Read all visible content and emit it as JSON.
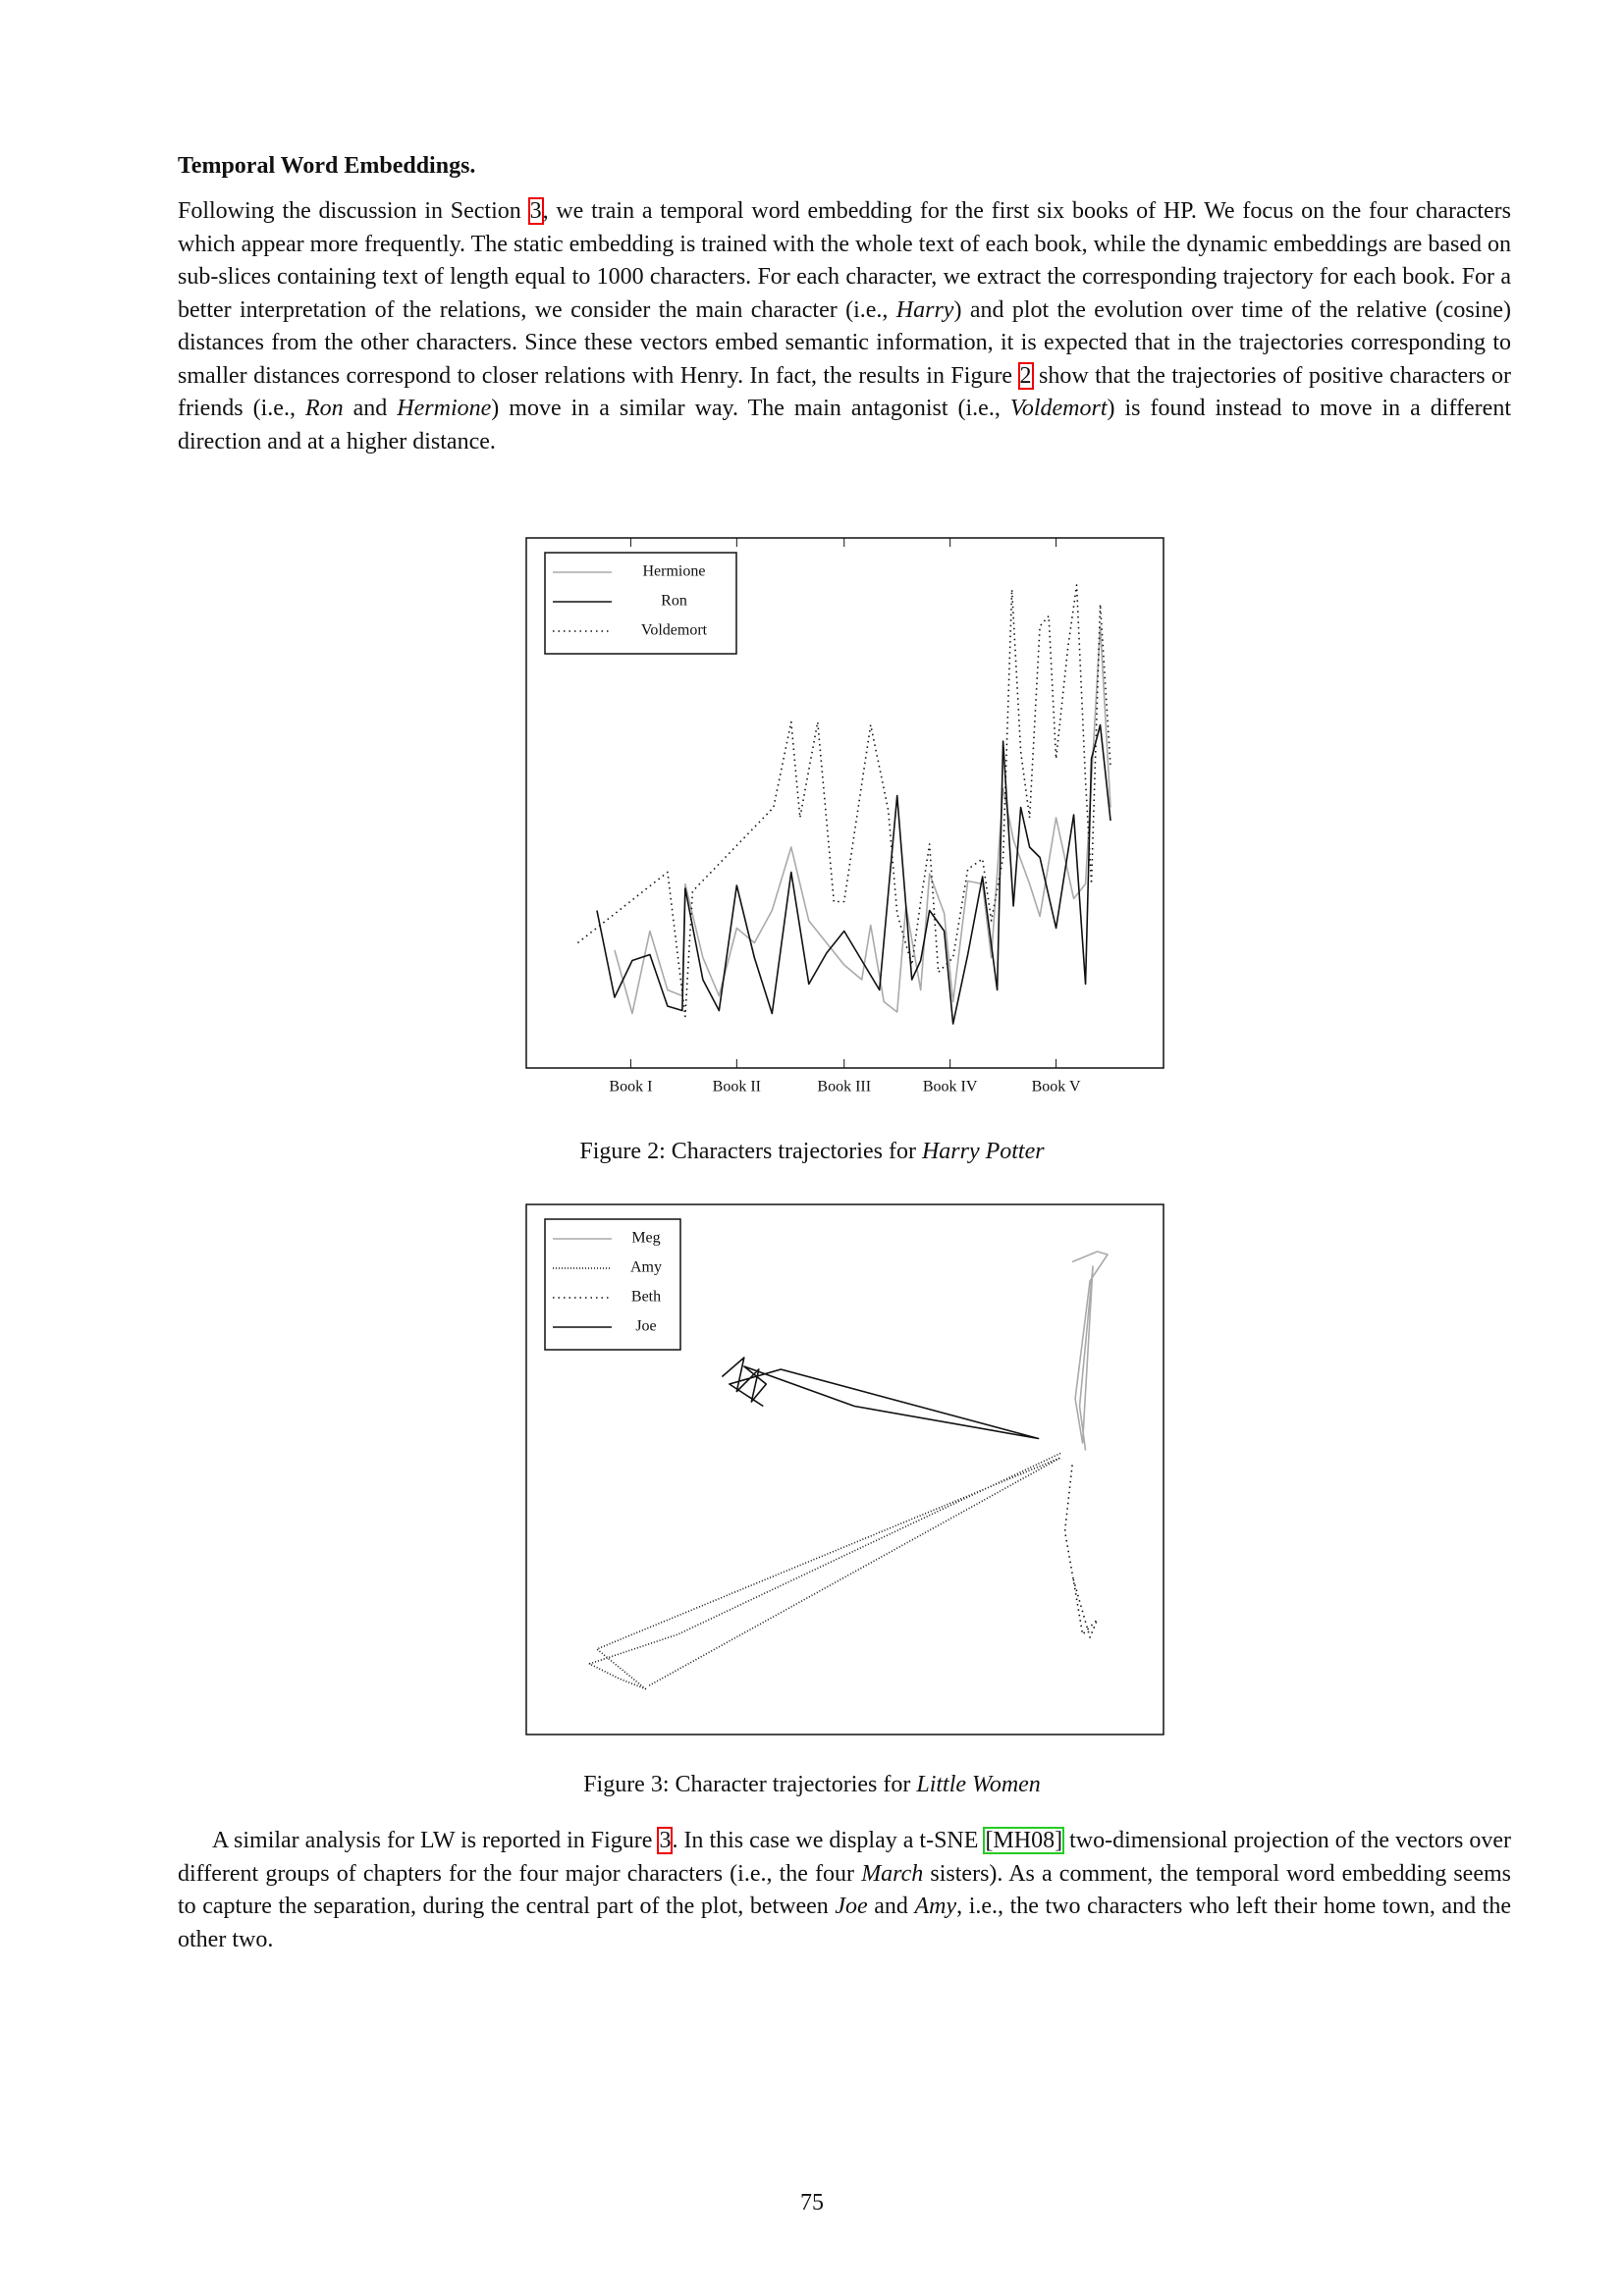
{
  "heading": "Temporal Word Embeddings.",
  "paragraphs": [
    [
      "Following the discussion in Section ",
      "3",
      ", we train a temporal word embedding for the first six books of HP. We focus on the four characters which appear more frequently. The static embedding is trained with the whole text of each book, while the dynamic embeddings are based on sub-slices containing text of length equal to 1000 characters. For each character, we extract the corresponding trajectory for each book. For a better interpretation of the relations, we consider the main character (i.e., ",
      "Harry",
      ") and plot the evolution over time of the relative (cosine) distances from the other characters. Since these vectors embed semantic information, it is expected that in the trajectories corresponding to smaller distances correspond to closer relations with Henry. In fact, the results in Figure ",
      "2",
      " show that the trajectories of positive characters or friends (i.e., ",
      "Ron",
      " and ",
      "Hermione",
      ") move in a similar way. The main antagonist (i.e., ",
      "Voldemort",
      ") is found instead to move in a different direction and at a higher distance."
    ],
    [
      "A similar analysis for LW is reported in Figure ",
      "3",
      ". In this case we display a t-SNE ",
      "[MH08]",
      " two-dimensional projection of the vectors over different groups of chapters for the four major characters (i.e., the four ",
      "March",
      " sisters). As a comment, the temporal word embedding seems to capture the separation, during the central part of the plot, between ",
      "Joe",
      " and ",
      "Amy",
      ", i.e., the two characters who left their home town, and the other two."
    ]
  ],
  "captions": [
    [
      "Figure 2: Characters trajectories for ",
      "Harry Potter"
    ],
    [
      "Figure 3: Character trajectories for ",
      "Little Women"
    ]
  ],
  "page_number": "75",
  "chart_data": [
    {
      "type": "line",
      "legend": "upper left",
      "xlim": [
        0,
        433
      ],
      "ylim": [
        0,
        360
      ],
      "xticks": [
        {
          "value": 71,
          "label": "Book I"
        },
        {
          "value": 143,
          "label": "Book II"
        },
        {
          "value": 216,
          "label": "Book III"
        },
        {
          "value": 288,
          "label": "Book IV"
        },
        {
          "value": 360,
          "label": "Book V"
        }
      ],
      "series": [
        {
          "name": "Hermione",
          "color": "#aaaaaa",
          "dash": "solid",
          "x": [
            60,
            72,
            84,
            96,
            106,
            108,
            120,
            131,
            143,
            155,
            167,
            180,
            192,
            204,
            216,
            228,
            234,
            243,
            252,
            258,
            268,
            274,
            284,
            290,
            300,
            310,
            316,
            324,
            331,
            342,
            349,
            360,
            372,
            380,
            390,
            397
          ],
          "values": [
            80,
            37,
            93,
            53,
            49,
            125,
            75,
            49,
            95,
            85,
            107,
            150,
            100,
            85,
            70,
            60,
            97,
            45,
            38,
            110,
            53,
            132,
            105,
            45,
            127,
            125,
            75,
            190,
            155,
            125,
            103,
            170,
            115,
            125,
            300,
            177
          ]
        },
        {
          "name": "Ron",
          "color": "#111111",
          "dash": "solid",
          "x": [
            48,
            60,
            72,
            84,
            96,
            106,
            108,
            120,
            131,
            143,
            155,
            167,
            180,
            192,
            204,
            216,
            228,
            240,
            252,
            262,
            268,
            274,
            284,
            290,
            300,
            310,
            320,
            324,
            331,
            336,
            342,
            349,
            360,
            372,
            380,
            384,
            390,
            397
          ],
          "values": [
            107,
            48,
            73,
            77,
            42,
            39,
            122,
            60,
            39,
            124,
            75,
            37,
            133,
            57,
            78,
            93,
            73,
            53,
            185,
            60,
            73,
            107,
            93,
            30,
            77,
            130,
            53,
            222,
            110,
            177,
            150,
            143,
            95,
            172,
            57,
            210,
            233,
            168
          ]
        },
        {
          "name": "Voldemort",
          "color": "#111111",
          "dash": "dotted",
          "x": [
            35,
            96,
            108,
            113,
            168,
            180,
            186,
            198,
            209,
            216,
            234,
            246,
            252,
            262,
            268,
            274,
            280,
            290,
            300,
            310,
            316,
            324,
            330,
            336,
            342,
            349,
            355,
            360,
            368,
            374,
            380,
            384,
            390,
            397
          ],
          "values": [
            85,
            133,
            35,
            120,
            177,
            235,
            170,
            235,
            113,
            113,
            233,
            175,
            105,
            70,
            113,
            152,
            65,
            75,
            135,
            142,
            100,
            143,
            325,
            215,
            170,
            300,
            307,
            210,
            285,
            328,
            195,
            125,
            315,
            205
          ]
        }
      ]
    },
    {
      "type": "line",
      "legend": "upper left",
      "xlim": [
        0,
        433
      ],
      "ylim": [
        0,
        360
      ],
      "series": [
        {
          "name": "Meg",
          "color": "#aaaaaa",
          "dash": "solid",
          "x": [
            371,
            388,
            395,
            383,
            373,
            378,
            385,
            376,
            380
          ],
          "values": [
            321,
            328,
            326,
            308,
            228,
            198,
            318,
            223,
            193
          ]
        },
        {
          "name": "Amy",
          "color": "#111111",
          "dash": "dense",
          "x": [
            363,
            103,
            43,
            63,
            81,
            48,
            363,
            83
          ],
          "values": [
            191,
            68,
            48,
            38,
            31,
            58,
            188,
            33
          ]
        },
        {
          "name": "Beth",
          "color": "#111111",
          "dash": "dotted",
          "x": [
            371,
            366,
            373,
            378,
            388,
            383,
            371
          ],
          "values": [
            183,
            138,
            98,
            68,
            78,
            66,
            108
          ]
        },
        {
          "name": "Joe",
          "color": "#111111",
          "dash": "solid",
          "x": [
            133,
            148,
            143,
            158,
            153,
            163,
            148,
            223,
            348,
            173,
            138,
            161
          ],
          "values": [
            243,
            256,
            233,
            248,
            226,
            238,
            250,
            223,
            201,
            248,
            238,
            223
          ]
        }
      ]
    }
  ]
}
